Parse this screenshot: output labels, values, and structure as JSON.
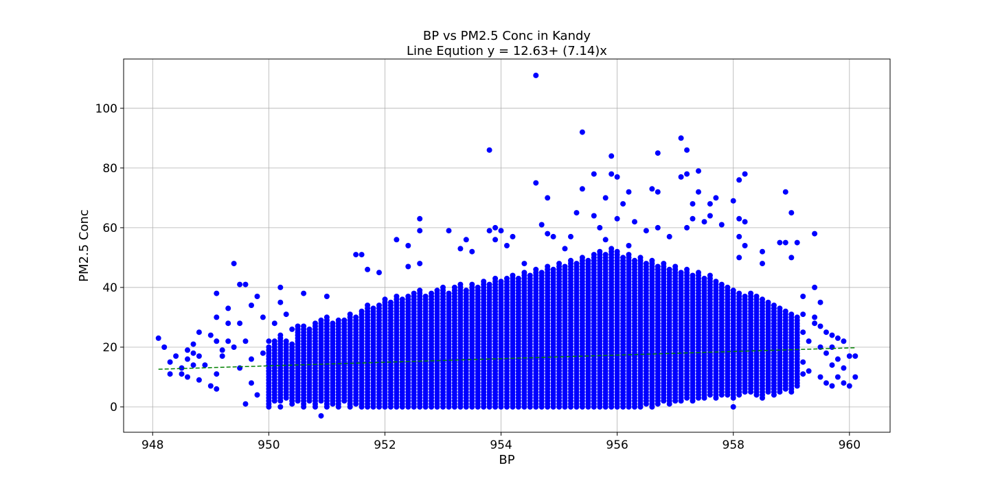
{
  "chart_data": {
    "type": "scatter",
    "title": "BP vs PM2.5 Conc in Kandy",
    "subtitle": "Line Eqution y = 12.63+ (7.14)x",
    "xlabel": "BP",
    "ylabel": "PM2.5 Conc",
    "xlim": [
      947.5,
      960.7
    ],
    "ylim": [
      -8.5,
      116.5
    ],
    "xticks": [
      948,
      950,
      952,
      954,
      956,
      958,
      960
    ],
    "yticks": [
      0,
      20,
      40,
      60,
      80,
      100
    ],
    "grid": true,
    "point_color": "#0000ff",
    "trend_color": "#008000",
    "trend_line": {
      "style": "dashed",
      "x": [
        948.1,
        960.1
      ],
      "y": [
        12.6,
        19.8
      ]
    },
    "series": [
      {
        "points": [
          [
            948.1,
            23
          ],
          [
            948.2,
            20
          ],
          [
            948.3,
            15
          ],
          [
            948.3,
            11
          ],
          [
            948.4,
            17
          ],
          [
            948.5,
            13
          ],
          [
            948.5,
            11
          ],
          [
            948.6,
            19
          ],
          [
            948.6,
            16
          ],
          [
            948.6,
            10
          ],
          [
            948.7,
            21
          ],
          [
            948.7,
            18
          ],
          [
            948.7,
            14
          ],
          [
            948.8,
            25
          ],
          [
            948.8,
            17
          ],
          [
            948.8,
            9
          ],
          [
            948.9,
            14
          ],
          [
            949.0,
            24
          ],
          [
            949.0,
            7
          ],
          [
            949.1,
            38
          ],
          [
            949.1,
            30
          ],
          [
            949.1,
            22
          ],
          [
            949.1,
            11
          ],
          [
            949.1,
            6
          ],
          [
            949.2,
            19
          ],
          [
            949.2,
            17
          ],
          [
            949.3,
            33
          ],
          [
            949.3,
            28
          ],
          [
            949.3,
            22
          ],
          [
            949.4,
            48
          ],
          [
            949.4,
            20
          ],
          [
            949.5,
            41
          ],
          [
            949.5,
            28
          ],
          [
            949.5,
            13
          ],
          [
            949.6,
            41
          ],
          [
            949.6,
            22
          ],
          [
            949.6,
            1
          ],
          [
            949.7,
            34
          ],
          [
            949.7,
            16
          ],
          [
            949.7,
            8
          ],
          [
            949.8,
            37
          ],
          [
            949.8,
            4
          ],
          [
            949.9,
            30
          ],
          [
            949.9,
            18
          ],
          [
            950.0,
            22
          ],
          [
            950.0,
            12
          ],
          [
            950.1,
            28
          ],
          [
            950.2,
            40
          ],
          [
            950.2,
            35
          ],
          [
            950.2,
            0
          ],
          [
            950.3,
            31
          ],
          [
            950.4,
            26
          ],
          [
            950.5,
            27
          ],
          [
            950.6,
            38
          ],
          [
            950.6,
            0
          ],
          [
            951.0,
            37
          ],
          [
            950.9,
            -3
          ],
          [
            951.5,
            51
          ],
          [
            951.6,
            51
          ],
          [
            951.7,
            46
          ],
          [
            951.9,
            45
          ],
          [
            952.2,
            56
          ],
          [
            952.4,
            54
          ],
          [
            952.4,
            47
          ],
          [
            952.6,
            48
          ],
          [
            952.6,
            63
          ],
          [
            952.6,
            59
          ],
          [
            953.1,
            59
          ],
          [
            953.3,
            53
          ],
          [
            953.4,
            56
          ],
          [
            953.5,
            52
          ],
          [
            953.8,
            86
          ],
          [
            953.8,
            59
          ],
          [
            953.9,
            60
          ],
          [
            953.9,
            56
          ],
          [
            954.0,
            59
          ],
          [
            954.1,
            54
          ],
          [
            954.2,
            57
          ],
          [
            954.4,
            48
          ],
          [
            954.6,
            111
          ],
          [
            954.6,
            75
          ],
          [
            954.7,
            61
          ],
          [
            954.8,
            70
          ],
          [
            954.8,
            58
          ],
          [
            954.9,
            57
          ],
          [
            955.1,
            53
          ],
          [
            955.2,
            57
          ],
          [
            955.3,
            65
          ],
          [
            955.4,
            92
          ],
          [
            955.4,
            73
          ],
          [
            955.6,
            64
          ],
          [
            955.6,
            78
          ],
          [
            955.7,
            60
          ],
          [
            955.8,
            70
          ],
          [
            955.8,
            56
          ],
          [
            955.9,
            84
          ],
          [
            955.9,
            78
          ],
          [
            956.0,
            77
          ],
          [
            956.0,
            63
          ],
          [
            956.1,
            68
          ],
          [
            956.2,
            72
          ],
          [
            956.2,
            54
          ],
          [
            956.3,
            62
          ],
          [
            956.5,
            59
          ],
          [
            956.6,
            73
          ],
          [
            956.7,
            85
          ],
          [
            956.7,
            72
          ],
          [
            956.7,
            60
          ],
          [
            956.9,
            57
          ],
          [
            957.1,
            90
          ],
          [
            957.1,
            77
          ],
          [
            957.2,
            86
          ],
          [
            957.2,
            78
          ],
          [
            957.2,
            60
          ],
          [
            957.3,
            68
          ],
          [
            957.3,
            63
          ],
          [
            957.4,
            79
          ],
          [
            957.4,
            72
          ],
          [
            957.5,
            62
          ],
          [
            957.6,
            64
          ],
          [
            957.6,
            68
          ],
          [
            957.7,
            70
          ],
          [
            957.8,
            61
          ],
          [
            958.0,
            69
          ],
          [
            958.1,
            76
          ],
          [
            958.1,
            63
          ],
          [
            958.2,
            78
          ],
          [
            958.2,
            62
          ],
          [
            958.1,
            57
          ],
          [
            958.1,
            50
          ],
          [
            958.2,
            54
          ],
          [
            958.5,
            52
          ],
          [
            958.5,
            48
          ],
          [
            958.8,
            55
          ],
          [
            958.9,
            55
          ],
          [
            958.9,
            72
          ],
          [
            959.0,
            65
          ],
          [
            959.0,
            50
          ],
          [
            959.1,
            55
          ],
          [
            958.0,
            0
          ],
          [
            959.2,
            37
          ],
          [
            959.2,
            31
          ],
          [
            959.2,
            25
          ],
          [
            959.2,
            15
          ],
          [
            959.2,
            11
          ],
          [
            959.3,
            22
          ],
          [
            959.3,
            12
          ],
          [
            959.4,
            40
          ],
          [
            959.4,
            30
          ],
          [
            959.4,
            28
          ],
          [
            959.4,
            58
          ],
          [
            959.5,
            35
          ],
          [
            959.5,
            27
          ],
          [
            959.5,
            20
          ],
          [
            959.5,
            10
          ],
          [
            959.6,
            25
          ],
          [
            959.6,
            18
          ],
          [
            959.6,
            8
          ],
          [
            959.7,
            24
          ],
          [
            959.7,
            20
          ],
          [
            959.7,
            14
          ],
          [
            959.7,
            7
          ],
          [
            959.8,
            23
          ],
          [
            959.8,
            16
          ],
          [
            959.8,
            10
          ],
          [
            959.9,
            22
          ],
          [
            959.9,
            13
          ],
          [
            959.9,
            8
          ],
          [
            960.0,
            17
          ],
          [
            960.0,
            7
          ],
          [
            960.1,
            10
          ],
          [
            960.1,
            17
          ]
        ]
      }
    ],
    "dense_band": {
      "x_step": 0.1,
      "columns": [
        [
          950.0,
          0,
          20
        ],
        [
          950.1,
          2,
          22
        ],
        [
          950.2,
          2,
          24
        ],
        [
          950.3,
          3,
          22
        ],
        [
          950.4,
          1,
          21
        ],
        [
          950.5,
          2,
          26
        ],
        [
          950.6,
          1,
          27
        ],
        [
          950.7,
          2,
          26
        ],
        [
          950.8,
          0,
          28
        ],
        [
          950.9,
          2,
          29
        ],
        [
          951.0,
          0,
          30
        ],
        [
          951.1,
          1,
          28
        ],
        [
          951.2,
          0,
          29
        ],
        [
          951.3,
          2,
          29
        ],
        [
          951.4,
          0,
          31
        ],
        [
          951.5,
          1,
          30
        ],
        [
          951.6,
          0,
          32
        ],
        [
          951.7,
          0,
          34
        ],
        [
          951.8,
          0,
          33
        ],
        [
          951.9,
          0,
          34
        ],
        [
          952.0,
          0,
          36
        ],
        [
          952.1,
          0,
          35
        ],
        [
          952.2,
          0,
          37
        ],
        [
          952.3,
          0,
          36
        ],
        [
          952.4,
          0,
          37
        ],
        [
          952.5,
          0,
          38
        ],
        [
          952.6,
          0,
          39
        ],
        [
          952.7,
          0,
          37
        ],
        [
          952.8,
          0,
          38
        ],
        [
          952.9,
          0,
          39
        ],
        [
          953.0,
          0,
          40
        ],
        [
          953.1,
          0,
          38
        ],
        [
          953.2,
          0,
          40
        ],
        [
          953.3,
          0,
          41
        ],
        [
          953.4,
          0,
          39
        ],
        [
          953.5,
          0,
          41
        ],
        [
          953.6,
          0,
          40
        ],
        [
          953.7,
          0,
          42
        ],
        [
          953.8,
          0,
          41
        ],
        [
          953.9,
          0,
          43
        ],
        [
          954.0,
          0,
          42
        ],
        [
          954.1,
          0,
          43
        ],
        [
          954.2,
          0,
          44
        ],
        [
          954.3,
          0,
          43
        ],
        [
          954.4,
          0,
          45
        ],
        [
          954.5,
          0,
          44
        ],
        [
          954.6,
          0,
          46
        ],
        [
          954.7,
          0,
          45
        ],
        [
          954.8,
          0,
          47
        ],
        [
          954.9,
          0,
          46
        ],
        [
          955.0,
          0,
          48
        ],
        [
          955.1,
          0,
          47
        ],
        [
          955.2,
          0,
          49
        ],
        [
          955.3,
          0,
          48
        ],
        [
          955.4,
          0,
          50
        ],
        [
          955.5,
          0,
          49
        ],
        [
          955.6,
          0,
          51
        ],
        [
          955.7,
          0,
          52
        ],
        [
          955.8,
          0,
          51
        ],
        [
          955.9,
          0,
          53
        ],
        [
          956.0,
          0,
          52
        ],
        [
          956.1,
          0,
          50
        ],
        [
          956.2,
          0,
          51
        ],
        [
          956.3,
          0,
          49
        ],
        [
          956.4,
          0,
          50
        ],
        [
          956.5,
          1,
          48
        ],
        [
          956.6,
          0,
          49
        ],
        [
          956.7,
          1,
          47
        ],
        [
          956.8,
          2,
          48
        ],
        [
          956.9,
          1,
          46
        ],
        [
          957.0,
          2,
          47
        ],
        [
          957.1,
          2,
          45
        ],
        [
          957.2,
          3,
          46
        ],
        [
          957.3,
          2,
          44
        ],
        [
          957.4,
          3,
          45
        ],
        [
          957.5,
          3,
          43
        ],
        [
          957.6,
          4,
          44
        ],
        [
          957.7,
          3,
          42
        ],
        [
          957.8,
          4,
          41
        ],
        [
          957.9,
          4,
          40
        ],
        [
          958.0,
          3,
          39
        ],
        [
          958.1,
          4,
          38
        ],
        [
          958.2,
          5,
          37
        ],
        [
          958.3,
          5,
          38
        ],
        [
          958.4,
          4,
          37
        ],
        [
          958.5,
          3,
          36
        ],
        [
          958.6,
          5,
          35
        ],
        [
          958.7,
          4,
          34
        ],
        [
          958.8,
          5,
          33
        ],
        [
          958.9,
          6,
          32
        ],
        [
          959.0,
          5,
          31
        ],
        [
          959.1,
          7,
          30
        ]
      ]
    }
  }
}
